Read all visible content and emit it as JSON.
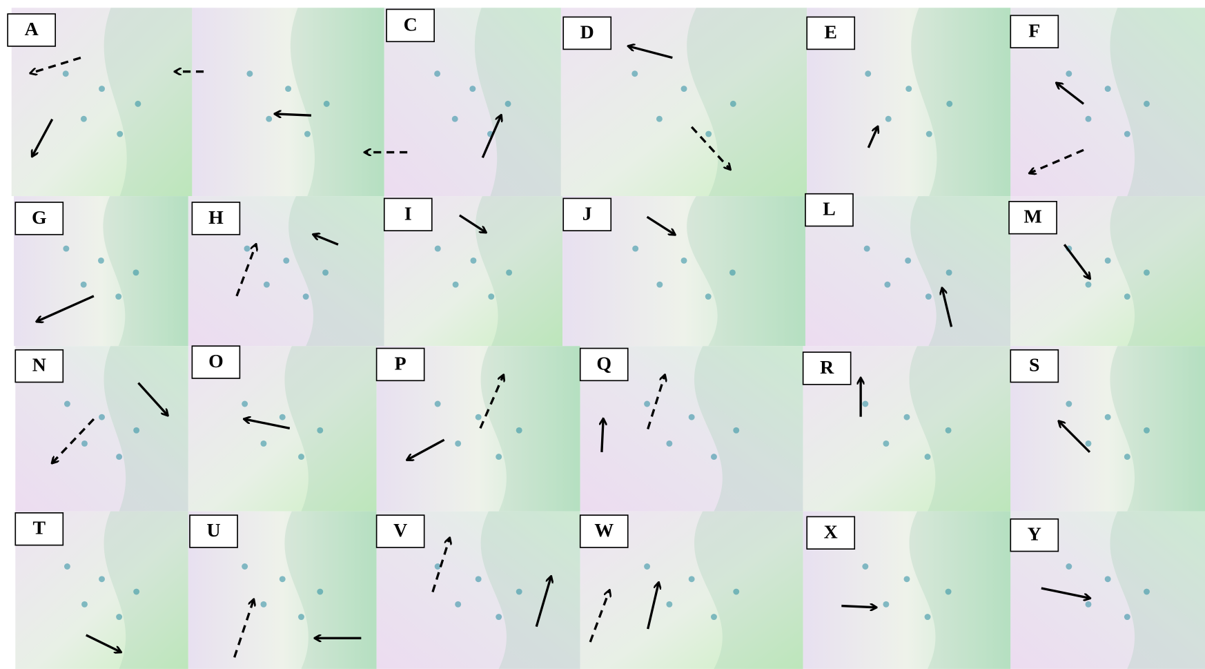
{
  "rows": [
    [
      "A",
      "C",
      "D",
      "E",
      "F"
    ],
    [
      "G",
      "H",
      "I",
      "J",
      "L",
      "M"
    ],
    [
      "N",
      "O",
      "P",
      "Q",
      "R",
      "S"
    ],
    [
      "T",
      "U",
      "V",
      "W",
      "X",
      "Y"
    ]
  ]
}
